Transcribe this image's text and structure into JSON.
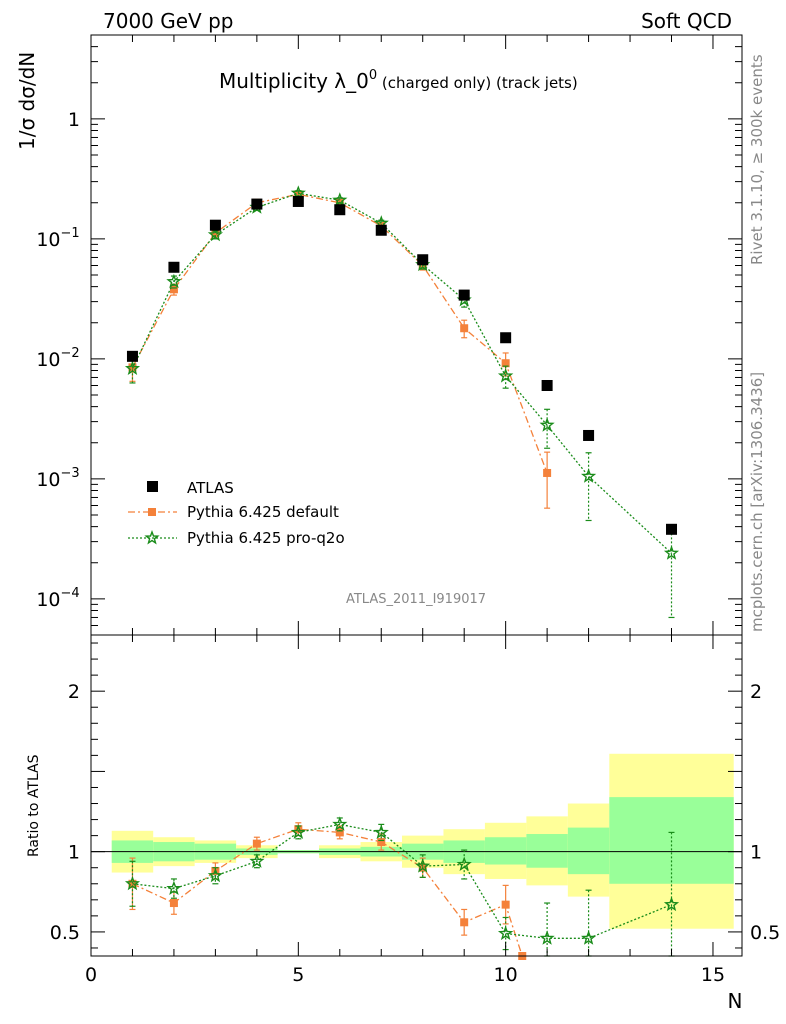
{
  "header": {
    "left": "7000 GeV pp",
    "right": "Soft QCD"
  },
  "title_main": "Multiplicity λ_0",
  "title_sup": "0",
  "title_tail": " (charged only) (track jets)",
  "side_label_top": "Rivet 3.1.10, ≥ 300k events",
  "side_label_bottom": "mcplots.cern.ch [arXiv:1306.3436]",
  "analysis_id": "ATLAS_2011_I919017",
  "colors": {
    "data": "#000000",
    "default": "#f4813a",
    "proq2o": "#1a8c1a",
    "band_inner": "#99ff99",
    "band_outer": "#ffff99"
  },
  "chart_data": [
    {
      "type": "scatter",
      "panel": "main",
      "xlabel": "N",
      "ylabel": "1/σ dσ/dN",
      "xlim": [
        0,
        15.7
      ],
      "ylim": [
        5e-05,
        5
      ],
      "yscale": "log",
      "y_ticks": [
        {
          "v": 0.0001,
          "mant": "10",
          "exp": "−4"
        },
        {
          "v": 0.001,
          "mant": "10",
          "exp": "−3"
        },
        {
          "v": 0.01,
          "mant": "10",
          "exp": "−2"
        },
        {
          "v": 0.1,
          "mant": "10",
          "exp": "−1"
        },
        {
          "v": 1,
          "mant": "1",
          "exp": ""
        }
      ],
      "legend_position": "lower-left",
      "series": [
        {
          "name": "ATLAS",
          "style": "square",
          "x": [
            1,
            2,
            3,
            4,
            5,
            6,
            7,
            8,
            9,
            10,
            11,
            12,
            14
          ],
          "y": [
            0.0105,
            0.058,
            0.13,
            0.195,
            0.205,
            0.175,
            0.118,
            0.067,
            0.034,
            0.015,
            0.006,
            0.0023,
            0.00038
          ]
        },
        {
          "name": "Pythia 6.425 default",
          "style": "dashdot-square",
          "x": [
            1,
            2,
            3,
            4,
            5,
            6,
            7,
            8,
            9,
            10,
            11
          ],
          "y": [
            0.0085,
            0.038,
            0.112,
            0.2,
            0.235,
            0.2,
            0.128,
            0.06,
            0.018,
            0.0092,
            0.00112
          ],
          "err": [
            0.002,
            0.004,
            0.008,
            0.01,
            0.012,
            0.01,
            0.008,
            0.005,
            0.003,
            0.002,
            0.00055
          ]
        },
        {
          "name": "Pythia 6.425 pro-q2o",
          "style": "dotted-star",
          "x": [
            1,
            2,
            3,
            4,
            5,
            6,
            7,
            8,
            9,
            10,
            11,
            12,
            14
          ],
          "y": [
            0.0083,
            0.044,
            0.108,
            0.183,
            0.24,
            0.21,
            0.135,
            0.061,
            0.031,
            0.0072,
            0.0028,
            0.00105,
            0.00024
          ],
          "err": [
            0.002,
            0.005,
            0.008,
            0.01,
            0.012,
            0.01,
            0.008,
            0.005,
            0.004,
            0.0015,
            0.001,
            0.0006,
            0.00017
          ]
        }
      ]
    },
    {
      "type": "scatter",
      "panel": "ratio",
      "xlabel": "N",
      "ylabel": "Ratio to ATLAS",
      "xlim": [
        0,
        15.7
      ],
      "ylim": [
        0.35,
        2.35
      ],
      "x_ticks": [
        0,
        5,
        10,
        15
      ],
      "y_ticks": [
        0.5,
        1,
        2
      ],
      "bands": [
        {
          "x0": 0.5,
          "x1": 1.5,
          "inner": [
            0.93,
            1.07
          ],
          "outer": [
            0.87,
            1.13
          ]
        },
        {
          "x0": 1.5,
          "x1": 2.5,
          "inner": [
            0.94,
            1.06
          ],
          "outer": [
            0.91,
            1.09
          ]
        },
        {
          "x0": 2.5,
          "x1": 3.5,
          "inner": [
            0.95,
            1.05
          ],
          "outer": [
            0.93,
            1.07
          ]
        },
        {
          "x0": 3.5,
          "x1": 4.5,
          "inner": [
            0.98,
            1.02
          ],
          "outer": [
            0.96,
            1.04
          ]
        },
        {
          "x0": 4.5,
          "x1": 5.5,
          "inner": [
            0.99,
            1.01
          ],
          "outer": [
            0.99,
            1.01
          ]
        },
        {
          "x0": 5.5,
          "x1": 6.5,
          "inner": [
            0.98,
            1.02
          ],
          "outer": [
            0.96,
            1.04
          ]
        },
        {
          "x0": 6.5,
          "x1": 7.5,
          "inner": [
            0.97,
            1.03
          ],
          "outer": [
            0.94,
            1.06
          ]
        },
        {
          "x0": 7.5,
          "x1": 8.5,
          "inner": [
            0.95,
            1.05
          ],
          "outer": [
            0.9,
            1.1
          ]
        },
        {
          "x0": 8.5,
          "x1": 9.5,
          "inner": [
            0.93,
            1.07
          ],
          "outer": [
            0.86,
            1.14
          ]
        },
        {
          "x0": 9.5,
          "x1": 10.5,
          "inner": [
            0.92,
            1.09
          ],
          "outer": [
            0.83,
            1.18
          ]
        },
        {
          "x0": 10.5,
          "x1": 11.5,
          "inner": [
            0.9,
            1.11
          ],
          "outer": [
            0.79,
            1.22
          ]
        },
        {
          "x0": 11.5,
          "x1": 12.5,
          "inner": [
            0.86,
            1.15
          ],
          "outer": [
            0.72,
            1.3
          ]
        },
        {
          "x0": 12.5,
          "x1": 15.5,
          "inner": [
            0.8,
            1.34
          ],
          "outer": [
            0.52,
            1.61
          ]
        }
      ],
      "series": [
        {
          "name": "Pythia 6.425 default",
          "style": "dashdot-square",
          "x": [
            1,
            2,
            3,
            4,
            5,
            6,
            7,
            8,
            9,
            10,
            10.4
          ],
          "y": [
            0.8,
            0.68,
            0.88,
            1.05,
            1.14,
            1.12,
            1.06,
            0.9,
            0.56,
            0.67,
            0.35
          ],
          "err": [
            0.16,
            0.07,
            0.05,
            0.04,
            0.04,
            0.04,
            0.05,
            0.06,
            0.08,
            0.12,
            0
          ]
        },
        {
          "name": "Pythia 6.425 pro-q2o",
          "style": "dotted-star",
          "x": [
            1,
            2,
            3,
            4,
            5,
            6,
            7,
            8,
            9,
            10,
            11,
            12,
            14
          ],
          "y": [
            0.8,
            0.77,
            0.85,
            0.94,
            1.12,
            1.17,
            1.12,
            0.91,
            0.92,
            0.49,
            0.46,
            0.46,
            0.67
          ],
          "err": [
            0.14,
            0.06,
            0.05,
            0.04,
            0.04,
            0.04,
            0.05,
            0.07,
            0.09,
            0.1,
            0.22,
            0.3,
            0.45
          ]
        }
      ]
    }
  ]
}
